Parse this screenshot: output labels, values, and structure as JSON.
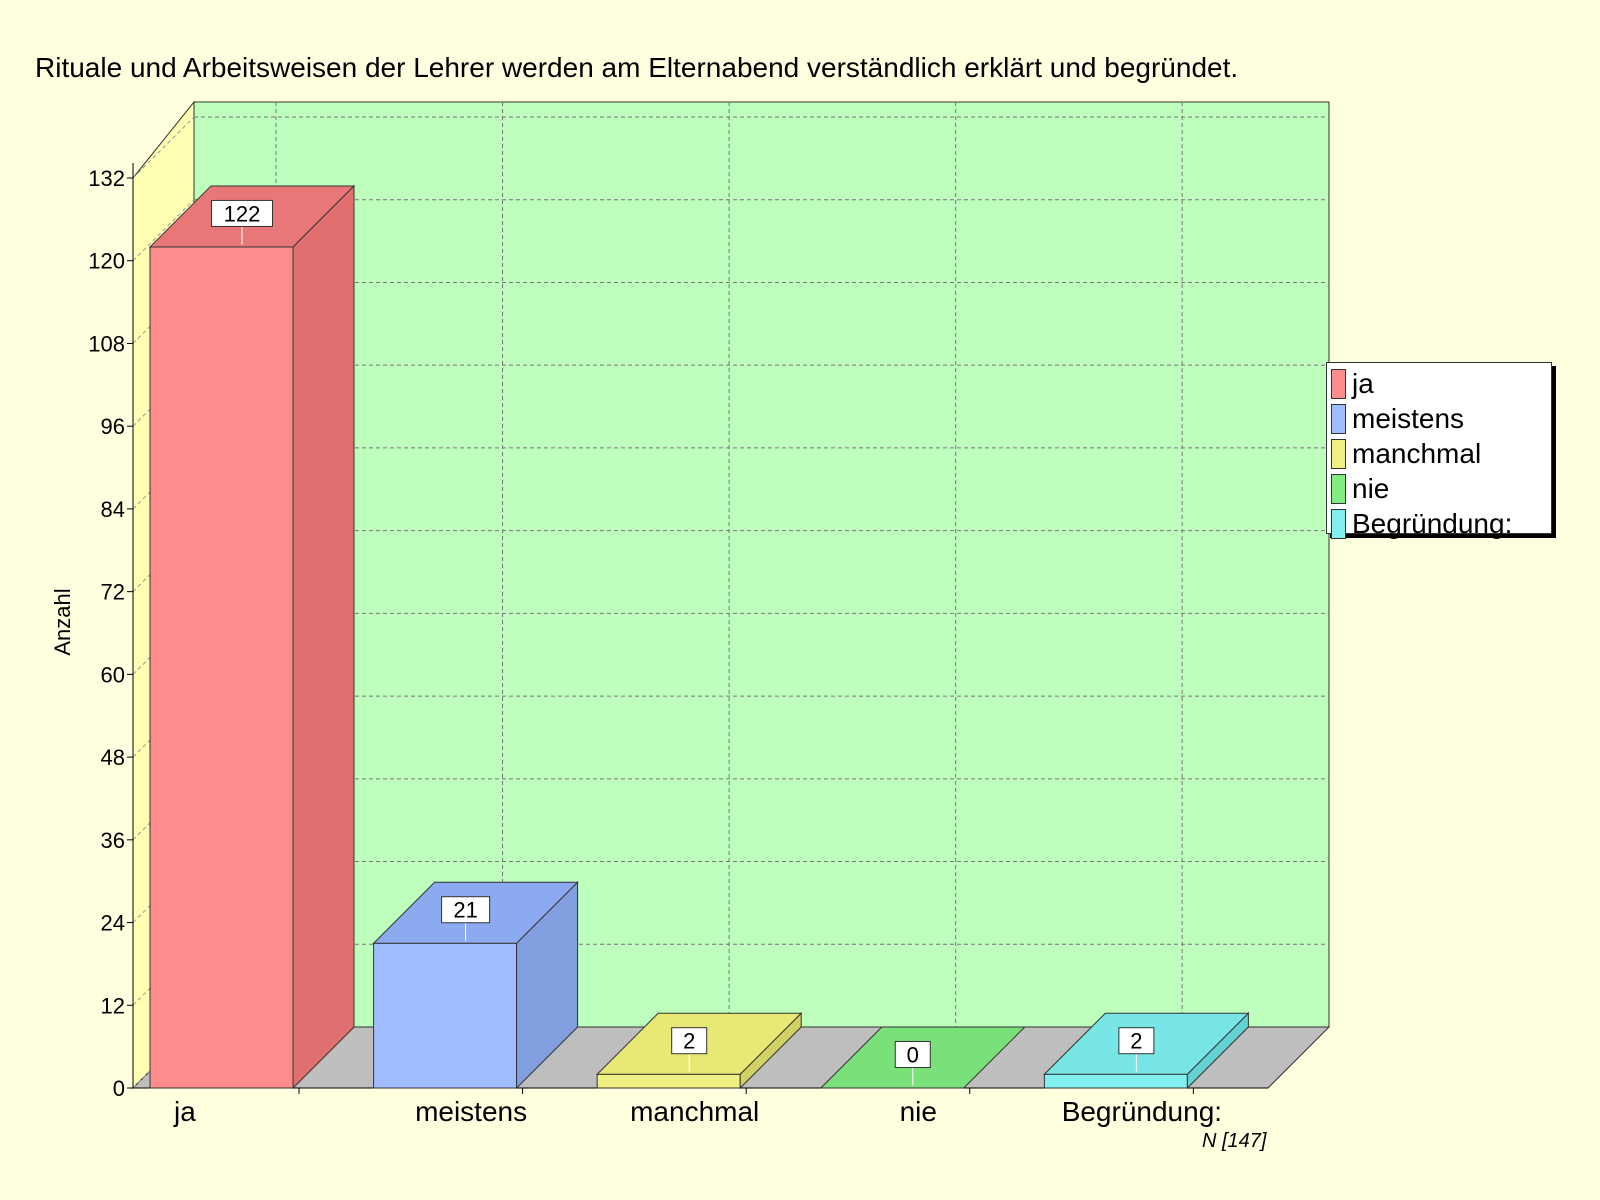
{
  "chart_data": {
    "type": "bar",
    "title": "Rituale und Arbeitsweisen der Lehrer werden am Elternabend verständlich erklärt und begründet.",
    "xlabel": "",
    "ylabel": "Anzahl",
    "ylim": [
      0,
      132
    ],
    "yticks": [
      0,
      12,
      24,
      36,
      48,
      60,
      72,
      84,
      96,
      108,
      120,
      132
    ],
    "categories": [
      "ja",
      "meistens",
      "manchmal",
      "nie",
      "Begründung:"
    ],
    "values": [
      122,
      21,
      2,
      0,
      2
    ],
    "colors": {
      "front": [
        "#FF8C8C",
        "#A0BEFF",
        "#F0F082",
        "#82EB82",
        "#82F0F0"
      ],
      "side": [
        "#E07070",
        "#82A0E0",
        "#D2D264",
        "#6ECD6E",
        "#64D2D2"
      ],
      "top": [
        "#E87878",
        "#8CAAF0",
        "#E8E874",
        "#7AE07A",
        "#78E6E6"
      ],
      "wall": "#BEFFBE",
      "side_wall": "#FFFFB4",
      "floor": "#BEBEBE",
      "background": "#FFFFE0"
    },
    "legend": {
      "position": "right",
      "entries": [
        "ja",
        "meistens",
        "manchmal",
        "nie",
        "Begründung:"
      ]
    },
    "grid": true,
    "note": "N [147]"
  }
}
